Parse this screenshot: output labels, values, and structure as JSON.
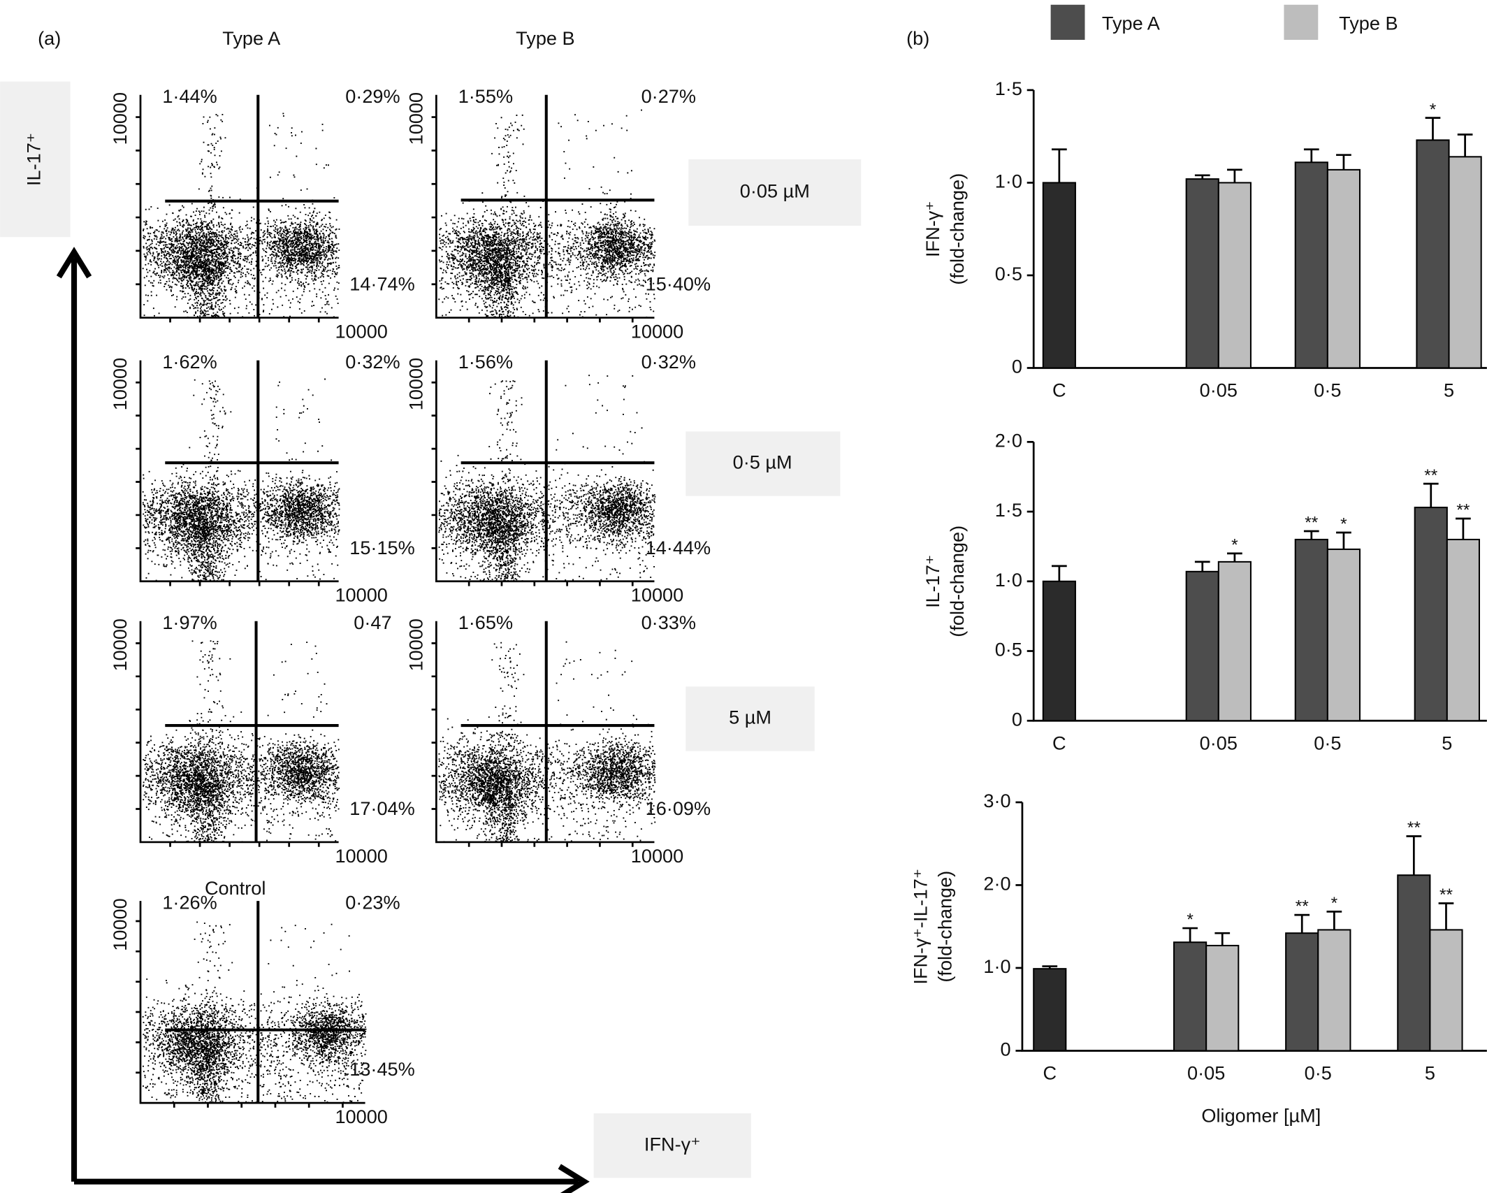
{
  "panel_a": {
    "label": "(a)",
    "columns": [
      "Type A",
      "Type B"
    ],
    "doses": [
      "0·05 µM",
      "0·5 µM",
      "5 µM"
    ],
    "control_title": "Control",
    "y_axis": "IL-17⁺",
    "x_axis": "IFN-γ⁺",
    "plots": [
      {
        "upper_left": "1·44%",
        "upper_right": "0·29%",
        "lower_right": "14·74%",
        "y_tick": 10000,
        "x_tick": 10000
      },
      {
        "upper_left": "1·55%",
        "upper_right": "0·27%",
        "lower_right": "15·40%",
        "y_tick": 10000,
        "x_tick": 10000
      },
      {
        "upper_left": "1·62%",
        "upper_right": "0·32%",
        "lower_right": "15·15%",
        "y_tick": 10000,
        "x_tick": 10000
      },
      {
        "upper_left": "1·56%",
        "upper_right": "0·32%",
        "lower_right": "14·44%",
        "y_tick": 10000,
        "x_tick": 10000
      },
      {
        "upper_left": "1·97%",
        "upper_right": "0·47",
        "lower_right": "17·04%",
        "y_tick": 10000,
        "x_tick": 10000
      },
      {
        "upper_left": "1·65%",
        "upper_right": "0·33%",
        "lower_right": "16·09%",
        "y_tick": 10000,
        "x_tick": 10000
      },
      {
        "upper_left": "1·26%",
        "upper_right": "0·23%",
        "lower_right": "13·45%",
        "y_tick": 10000,
        "x_tick": 10000
      }
    ]
  },
  "panel_b": {
    "label": "(b)"
  },
  "chart_data": [
    {
      "type": "bar",
      "y_label": [
        "IFN-γ⁺",
        "(fold-change)"
      ],
      "categories": [
        "C",
        "0·05",
        "0·5",
        "5"
      ],
      "ylim": [
        0,
        1.5
      ],
      "yticks": [
        0,
        {
          "value": 0.5,
          "label": "0·5"
        },
        {
          "value": 1.0,
          "label": "1·0"
        },
        {
          "value": 1.5,
          "label": "1·5"
        }
      ],
      "series": [
        {
          "color": "#2b2b2b",
          "values": [
            1.0,
            null,
            null,
            null
          ],
          "errors": [
            0.18,
            null,
            null,
            null
          ],
          "significance": [
            null,
            null,
            null,
            null
          ]
        },
        {
          "name": "Type A",
          "color": "#4d4d4d",
          "values": [
            null,
            1.02,
            1.11,
            1.23
          ],
          "errors": [
            null,
            0.02,
            0.07,
            0.12
          ],
          "significance": [
            null,
            null,
            null,
            "*"
          ]
        },
        {
          "name": "Type B",
          "color": "#bdbdbd",
          "values": [
            null,
            1.0,
            1.07,
            1.14
          ],
          "errors": [
            null,
            0.07,
            0.08,
            0.12
          ],
          "significance": [
            null,
            null,
            null,
            null
          ]
        }
      ]
    },
    {
      "type": "bar",
      "y_label": [
        "IL-17⁺",
        "(fold-change)"
      ],
      "categories": [
        "C",
        "0·05",
        "0·5",
        "5"
      ],
      "ylim": [
        0,
        2.0
      ],
      "yticks": [
        0,
        {
          "value": 0.5,
          "label": "0·5"
        },
        {
          "value": 1.0,
          "label": "1·0"
        },
        {
          "value": 1.5,
          "label": "1·5"
        },
        {
          "value": 2.0,
          "label": "2·0"
        }
      ],
      "series": [
        {
          "color": "#2b2b2b",
          "values": [
            1.0,
            null,
            null,
            null
          ],
          "errors": [
            0.11,
            null,
            null,
            null
          ],
          "significance": [
            null,
            null,
            null,
            null
          ]
        },
        {
          "name": "Type A",
          "color": "#4d4d4d",
          "values": [
            null,
            1.07,
            1.3,
            1.53
          ],
          "errors": [
            null,
            0.07,
            0.06,
            0.17
          ],
          "significance": [
            null,
            null,
            "**",
            "**"
          ]
        },
        {
          "name": "Type B",
          "color": "#bdbdbd",
          "values": [
            null,
            1.14,
            1.23,
            1.3
          ],
          "errors": [
            null,
            0.06,
            0.12,
            0.15
          ],
          "significance": [
            null,
            "*",
            "*",
            "**"
          ]
        }
      ]
    },
    {
      "type": "bar",
      "y_label": [
        "IFN-γ⁺-IL-17⁺",
        "(fold-change)"
      ],
      "x_label": "Oligomer [µM]",
      "categories": [
        "C",
        "0·05",
        "0·5",
        "5"
      ],
      "ylim": [
        0,
        3.0
      ],
      "yticks": [
        0,
        {
          "value": 1.0,
          "label": "1·0"
        },
        {
          "value": 2.0,
          "label": "2·0"
        },
        {
          "value": 3.0,
          "label": "3·0"
        }
      ],
      "series": [
        {
          "color": "#2b2b2b",
          "values": [
            0.99,
            null,
            null,
            null
          ],
          "errors": [
            0.03,
            null,
            null,
            null
          ],
          "significance": [
            null,
            null,
            null,
            null
          ]
        },
        {
          "name": "Type A",
          "color": "#4d4d4d",
          "values": [
            null,
            1.31,
            1.42,
            2.12
          ],
          "errors": [
            null,
            0.17,
            0.22,
            0.47
          ],
          "significance": [
            null,
            "*",
            "**",
            "**"
          ]
        },
        {
          "name": "Type B",
          "color": "#bdbdbd",
          "values": [
            null,
            1.27,
            1.46,
            1.46
          ],
          "errors": [
            null,
            0.15,
            0.22,
            0.32
          ],
          "significance": [
            null,
            null,
            "*",
            "**"
          ]
        }
      ]
    }
  ]
}
